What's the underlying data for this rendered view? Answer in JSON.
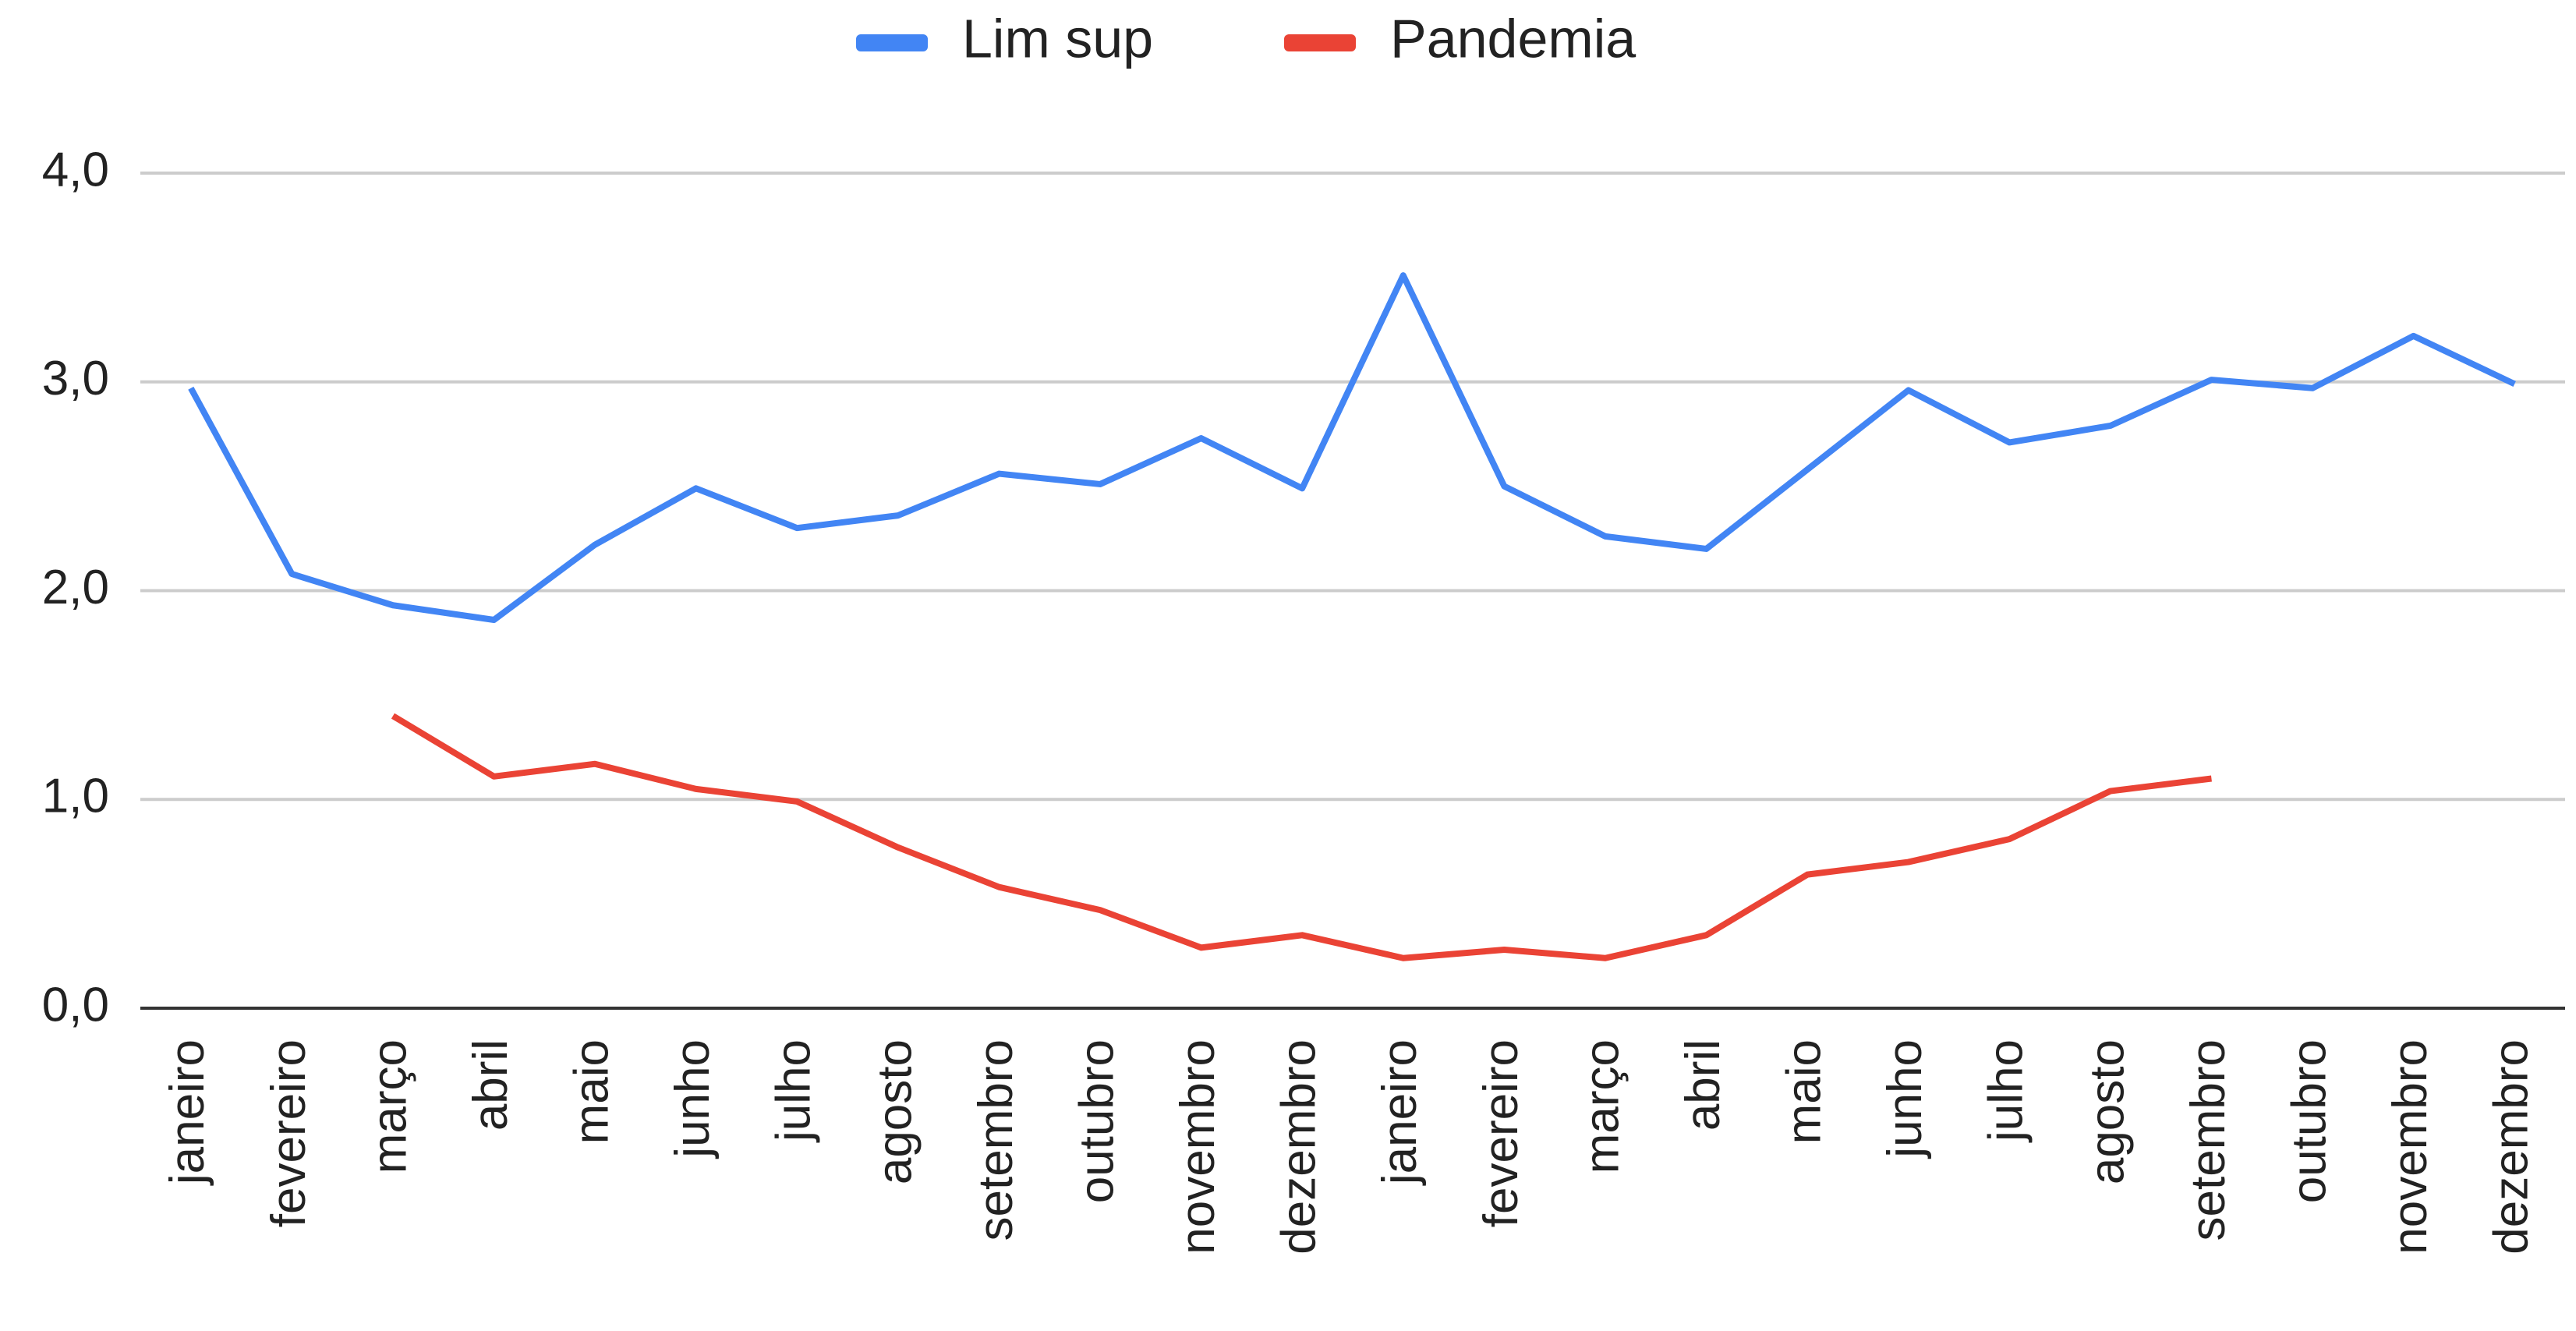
{
  "chart_data": {
    "type": "line",
    "categories": [
      "janeiro",
      "fevereiro",
      "março",
      "abril",
      "maio",
      "junho",
      "julho",
      "agosto",
      "setembro",
      "outubro",
      "novembro",
      "dezembro",
      "janeiro",
      "fevereiro",
      "março",
      "abril",
      "maio",
      "junho",
      "julho",
      "agosto",
      "setembro",
      "outubro",
      "novembro",
      "dezembro"
    ],
    "series": [
      {
        "name": "Lim sup",
        "color": "#4285f4",
        "values": [
          2.97,
          2.08,
          1.93,
          1.86,
          2.22,
          2.49,
          2.3,
          2.36,
          2.56,
          2.51,
          2.73,
          2.49,
          3.51,
          2.5,
          2.26,
          2.2,
          2.58,
          2.96,
          2.71,
          2.79,
          3.01,
          2.97,
          3.22,
          2.99
        ]
      },
      {
        "name": "Pandemia",
        "color": "#ea4335",
        "values": [
          null,
          null,
          1.4,
          1.11,
          1.17,
          1.05,
          0.99,
          0.77,
          0.58,
          0.47,
          0.29,
          0.35,
          0.24,
          0.28,
          0.24,
          0.35,
          0.64,
          0.7,
          0.81,
          1.04,
          1.1,
          null,
          null,
          null
        ]
      }
    ],
    "ylim": [
      0,
      4
    ],
    "yticks": [
      {
        "value": 0,
        "label": "0,0"
      },
      {
        "value": 1,
        "label": "1,0"
      },
      {
        "value": 2,
        "label": "2,0"
      },
      {
        "value": 3,
        "label": "3,0"
      },
      {
        "value": 4,
        "label": "4,0"
      }
    ],
    "grid": true,
    "legend": "top"
  }
}
